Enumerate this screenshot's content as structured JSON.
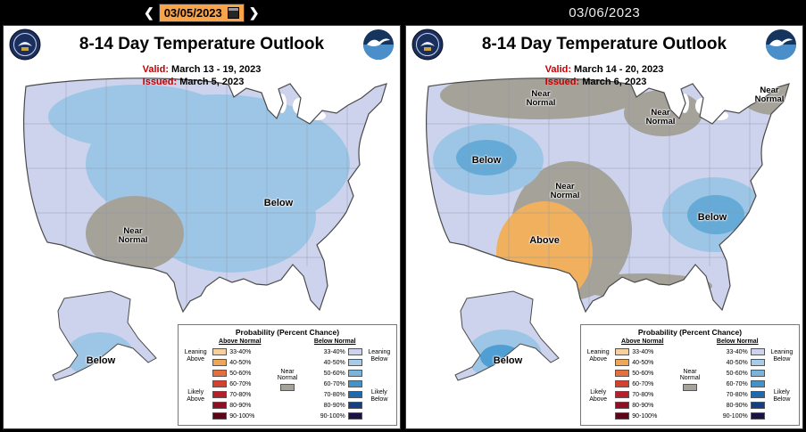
{
  "topbar": {
    "prev": "❮",
    "next": "❯",
    "left_date": "03/05/2023",
    "right_date": "03/06/2023",
    "date_bg": "#f9a44a"
  },
  "map_colors": {
    "base": "#cdd3ec",
    "blue": "#9dc6e6",
    "blue_dark": "#66abd8",
    "blue_darker": "#4f9fd4",
    "gray": "#a5a29a",
    "orange": "#f0b05e"
  },
  "panels": [
    {
      "title": "8-14 Day Temperature Outlook",
      "valid_label": "Valid:",
      "valid_value": "March 13 - 19, 2023",
      "issued_label": "Issued:",
      "issued_value": "March 5, 2023",
      "labels": {
        "below": "Below",
        "near_normal": "Near\nNormal",
        "ak_below": "Below"
      }
    },
    {
      "title": "8-14 Day Temperature Outlook",
      "valid_label": "Valid:",
      "valid_value": "March 14 - 20, 2023",
      "issued_label": "Issued:",
      "issued_value": "March 6, 2023",
      "labels": {
        "top_near_normal": "Near\nNormal",
        "lakes_near_normal": "Near\nNormal",
        "ne_near_normal": "Near\nNormal",
        "west_below": "Below",
        "center_near_normal": "Near\nNormal",
        "above": "Above",
        "east_below": "Below",
        "ak_below": "Below"
      }
    }
  ],
  "legend": {
    "title": "Probability (Percent Chance)",
    "above_header": "Above Normal",
    "below_header": "Below Normal",
    "near_normal": "Near\nNormal",
    "near_normal_color": "#a5a29a",
    "leaning_above": "Leaning\nAbove",
    "likely_above": "Likely\nAbove",
    "leaning_below": "Leaning\nBelow",
    "likely_below": "Likely\nBelow",
    "rows": [
      {
        "pct": "33-40%",
        "above": "#f6cf9a",
        "below": "#ccd3ec"
      },
      {
        "pct": "40-50%",
        "above": "#f0a654",
        "below": "#a8cce8"
      },
      {
        "pct": "50-60%",
        "above": "#e4713c",
        "below": "#77b5dd"
      },
      {
        "pct": "60-70%",
        "above": "#d8402e",
        "below": "#4492c6"
      },
      {
        "pct": "70-80%",
        "above": "#b5202a",
        "below": "#2268ae"
      },
      {
        "pct": "80-90%",
        "above": "#8d1023",
        "below": "#173f80"
      },
      {
        "pct": "90-100%",
        "above": "#5e0617",
        "below": "#1c1145"
      }
    ]
  }
}
